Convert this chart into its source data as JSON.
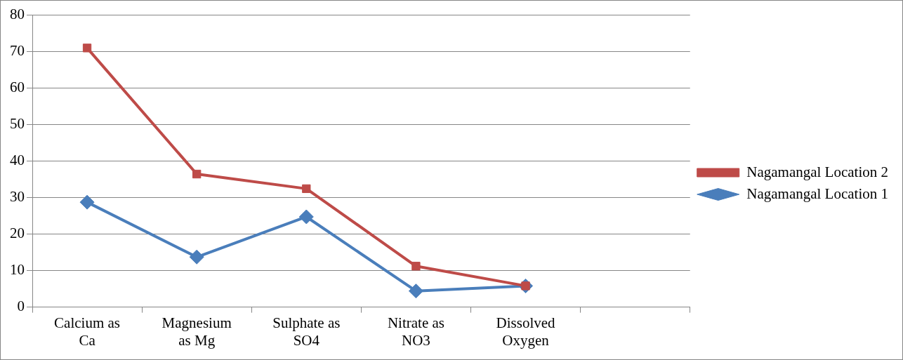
{
  "chart_data": {
    "type": "line",
    "categories": [
      "Calcium as Ca",
      "Magnesium as Mg",
      "Sulphate as SO4",
      "Nitrate as NO3",
      "Dissolved Oxygen",
      null
    ],
    "series": [
      {
        "name": "Nagamangal Location 1",
        "color": "#4a7ebb",
        "marker": "diamond",
        "values": [
          28.7,
          13.7,
          24.7,
          4.4,
          5.8,
          null
        ]
      },
      {
        "name": "Nagamangal Location 2",
        "color": "#be4b48",
        "marker": "square",
        "values": [
          70.9,
          36.4,
          32.4,
          11.2,
          5.8,
          null
        ]
      }
    ],
    "ylim": [
      0,
      80
    ],
    "yticks": [
      0,
      10,
      20,
      30,
      40,
      50,
      60,
      70,
      80
    ],
    "grid": "y",
    "legend": "right"
  }
}
